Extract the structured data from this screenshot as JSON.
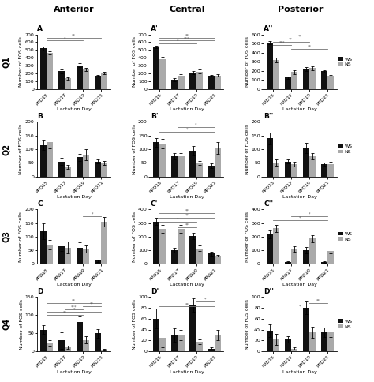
{
  "column_titles": [
    "Anterior",
    "Central",
    "Posterior"
  ],
  "row_labels": [
    "Q1",
    "Q2",
    "Q3",
    "Q4"
  ],
  "chart_data": [
    {
      "type": "bar",
      "title": "A",
      "x_label": "Lactation Day",
      "y_label": "Number of FOS cells",
      "categories": [
        "PPD15",
        "PPD17",
        "PPD19",
        "PPD21"
      ],
      "series": [
        {
          "name": "WS",
          "color": "#111111",
          "values": [
            520,
            230,
            305,
            170
          ],
          "errors": [
            25,
            25,
            25,
            15
          ]
        },
        {
          "name": "NS",
          "color": "#aaaaaa",
          "values": [
            460,
            135,
            255,
            205
          ],
          "errors": [
            20,
            12,
            20,
            18
          ]
        }
      ],
      "ylim": [
        0,
        700
      ],
      "yticks": [
        0,
        100,
        200,
        300,
        400,
        500,
        600,
        700
      ],
      "annotations": [
        {
          "from": "PPD15",
          "to": "PPD19",
          "y": 620,
          "text": "*"
        },
        {
          "from": "PPD15",
          "to": "PPD21",
          "y": 660,
          "text": "**"
        }
      ]
    },
    {
      "type": "bar",
      "title": "A'",
      "x_label": "Lactation Day",
      "y_label": "Number of FOS cells",
      "categories": [
        "PPD15",
        "PPD17",
        "PPD19",
        "PPD21"
      ],
      "series": [
        {
          "name": "WS",
          "color": "#111111",
          "values": [
            540,
            120,
            210,
            170
          ],
          "errors": [
            18,
            18,
            18,
            12
          ]
        },
        {
          "name": "NS",
          "color": "#aaaaaa",
          "values": [
            380,
            175,
            225,
            175
          ],
          "errors": [
            28,
            18,
            22,
            12
          ]
        }
      ],
      "ylim": [
        0,
        700
      ],
      "yticks": [
        0,
        100,
        200,
        300,
        400,
        500,
        600,
        700
      ],
      "annotations": [
        {
          "from": "PPD15",
          "to": "PPD19",
          "y": 580,
          "text": "*"
        },
        {
          "from": "PPD15",
          "to": "PPD21",
          "y": 620,
          "text": "***"
        },
        {
          "from": "PPD15",
          "to": "PPD21",
          "y": 660,
          "text": "**"
        }
      ]
    },
    {
      "type": "bar",
      "title": "A''",
      "x_label": "Lactation Day",
      "y_label": "Number of FOS cells",
      "categories": [
        "PPD15",
        "PPD17",
        "PPD19",
        "PPD21"
      ],
      "series": [
        {
          "name": "WS",
          "color": "#111111",
          "values": [
            510,
            125,
            220,
            195
          ],
          "errors": [
            20,
            15,
            18,
            15
          ]
        },
        {
          "name": "NS",
          "color": "#aaaaaa",
          "values": [
            320,
            185,
            230,
            145
          ],
          "errors": [
            25,
            18,
            22,
            12
          ]
        }
      ],
      "ylim": [
        0,
        600
      ],
      "yticks": [
        0,
        100,
        200,
        300,
        400,
        500,
        600
      ],
      "annotations": [
        {
          "from": "PPD15",
          "to": "PPD17",
          "y": 480,
          "text": "***"
        },
        {
          "from": "PPD15",
          "to": "PPD19",
          "y": 515,
          "text": "**"
        },
        {
          "from": "PPD15",
          "to": "PPD21",
          "y": 550,
          "text": "**"
        },
        {
          "from": "PPD17",
          "to": "PPD21",
          "y": 440,
          "text": "**"
        }
      ],
      "legend": "right"
    },
    {
      "type": "bar",
      "title": "B",
      "x_label": "Lactation Day",
      "y_label": "Number of FOS cells",
      "categories": [
        "PPD15",
        "PPD17",
        "PPD19",
        "PPD21"
      ],
      "series": [
        {
          "name": "WS",
          "color": "#111111",
          "values": [
            115,
            55,
            70,
            55
          ],
          "errors": [
            18,
            12,
            12,
            8
          ]
        },
        {
          "name": "NS",
          "color": "#aaaaaa",
          "values": [
            125,
            35,
            80,
            50
          ],
          "errors": [
            22,
            8,
            20,
            8
          ]
        }
      ],
      "ylim": [
        0,
        200
      ],
      "yticks": [
        0,
        50,
        100,
        150,
        200
      ],
      "annotations": []
    },
    {
      "type": "bar",
      "title": "B'",
      "x_label": "Lactation Day",
      "y_label": "Number of FOS cells",
      "categories": [
        "PPD15",
        "PPD17",
        "PPD19",
        "PPD21"
      ],
      "series": [
        {
          "name": "WS",
          "color": "#111111",
          "values": [
            125,
            75,
            95,
            40
          ],
          "errors": [
            15,
            12,
            18,
            8
          ]
        },
        {
          "name": "NS",
          "color": "#aaaaaa",
          "values": [
            120,
            75,
            50,
            105
          ],
          "errors": [
            18,
            10,
            8,
            22
          ]
        }
      ],
      "ylim": [
        0,
        200
      ],
      "yticks": [
        0,
        50,
        100,
        150,
        200
      ],
      "annotations": [
        {
          "from": "PPD15",
          "to": "PPD21",
          "y": 165,
          "text": "*"
        },
        {
          "from": "PPD17",
          "to": "PPD21",
          "y": 180,
          "text": "*"
        }
      ]
    },
    {
      "type": "bar",
      "title": "B''",
      "x_label": "Lactation Day",
      "y_label": "Number of FOS cells",
      "categories": [
        "PPD15",
        "PPD17",
        "PPD19",
        "PPD21"
      ],
      "series": [
        {
          "name": "WS",
          "color": "#111111",
          "values": [
            140,
            55,
            105,
            45
          ],
          "errors": [
            22,
            8,
            18,
            5
          ]
        },
        {
          "name": "NS",
          "color": "#aaaaaa",
          "values": [
            50,
            45,
            75,
            45
          ],
          "errors": [
            12,
            8,
            12,
            8
          ]
        }
      ],
      "ylim": [
        0,
        200
      ],
      "yticks": [
        0,
        50,
        100,
        150,
        200
      ],
      "annotations": [],
      "legend": "right"
    },
    {
      "type": "bar",
      "title": "C",
      "x_label": "Lactation Day",
      "y_label": "Number of FOS cells",
      "categories": [
        "PPD15",
        "PPD17",
        "PPD19",
        "PPD21"
      ],
      "series": [
        {
          "name": "WS",
          "color": "#111111",
          "values": [
            120,
            65,
            60,
            12
          ],
          "errors": [
            30,
            18,
            18,
            4
          ]
        },
        {
          "name": "NS",
          "color": "#aaaaaa",
          "values": [
            70,
            60,
            55,
            155
          ],
          "errors": [
            18,
            22,
            12,
            18
          ]
        }
      ],
      "ylim": [
        0,
        200
      ],
      "yticks": [
        0,
        50,
        100,
        150,
        200
      ],
      "annotations": [
        {
          "from": "PPD19",
          "to": "PPD21",
          "y": 175,
          "text": "*"
        }
      ]
    },
    {
      "type": "bar",
      "title": "C'",
      "x_label": "Lactation Day",
      "y_label": "Number of FOS cells",
      "categories": [
        "PPD15",
        "PPD17",
        "PPD19",
        "PPD21"
      ],
      "series": [
        {
          "name": "WS",
          "color": "#111111",
          "values": [
            310,
            100,
            205,
            75
          ],
          "errors": [
            25,
            18,
            22,
            12
          ]
        },
        {
          "name": "NS",
          "color": "#aaaaaa",
          "values": [
            255,
            255,
            115,
            60
          ],
          "errors": [
            28,
            28,
            18,
            8
          ]
        }
      ],
      "ylim": [
        0,
        400
      ],
      "yticks": [
        0,
        100,
        200,
        300,
        400
      ],
      "annotations": [
        {
          "from": "PPD15",
          "to": "PPD19",
          "y": 310,
          "text": "*"
        },
        {
          "from": "PPD15",
          "to": "PPD21",
          "y": 340,
          "text": "**"
        },
        {
          "from": "PPD17",
          "to": "PPD19",
          "y": 270,
          "text": "**"
        },
        {
          "from": "PPD15",
          "to": "PPD21",
          "y": 375,
          "text": "**"
        }
      ]
    },
    {
      "type": "bar",
      "title": "C''",
      "x_label": "Lactation Day",
      "y_label": "Number of FOS cells",
      "categories": [
        "PPD15",
        "PPD17",
        "PPD19",
        "PPD21"
      ],
      "series": [
        {
          "name": "WS",
          "color": "#111111",
          "values": [
            215,
            15,
            100,
            15
          ],
          "errors": [
            28,
            4,
            22,
            4
          ]
        },
        {
          "name": "NS",
          "color": "#aaaaaa",
          "values": [
            260,
            110,
            185,
            95
          ],
          "errors": [
            28,
            18,
            28,
            18
          ]
        }
      ],
      "ylim": [
        0,
        400
      ],
      "yticks": [
        0,
        100,
        200,
        300,
        400
      ],
      "annotations": [
        {
          "from": "PPD15",
          "to": "PPD21",
          "y": 320,
          "text": "*"
        },
        {
          "from": "PPD17",
          "to": "PPD21",
          "y": 350,
          "text": "*"
        }
      ],
      "legend": "right"
    },
    {
      "type": "bar",
      "title": "D",
      "x_label": "Lactation Day",
      "y_label": "Number of FOS cells",
      "categories": [
        "PPD15",
        "PPD17",
        "PPD19",
        "PPD21"
      ],
      "series": [
        {
          "name": "WS",
          "color": "#111111",
          "values": [
            60,
            30,
            80,
            50
          ],
          "errors": [
            12,
            22,
            15,
            12
          ]
        },
        {
          "name": "NS",
          "color": "#aaaaaa",
          "values": [
            22,
            12,
            32,
            5
          ],
          "errors": [
            8,
            4,
            10,
            2
          ]
        }
      ],
      "ylim": [
        0,
        150
      ],
      "yticks": [
        0,
        50,
        100,
        150
      ],
      "annotations": [
        {
          "from": "PPD15",
          "to": "PPD19",
          "y": 100,
          "text": "**"
        },
        {
          "from": "PPD15",
          "to": "PPD21",
          "y": 108,
          "text": "*"
        },
        {
          "from": "PPD17",
          "to": "PPD19",
          "y": 116,
          "text": "***"
        },
        {
          "from": "PPD19",
          "to": "PPD21",
          "y": 124,
          "text": "**"
        },
        {
          "from": "PPD15",
          "to": "PPD21",
          "y": 132,
          "text": "**"
        }
      ]
    },
    {
      "type": "bar",
      "title": "D'",
      "x_label": "Lactation Day",
      "y_label": "Number of FOS cells",
      "categories": [
        "PPD15",
        "PPD17",
        "PPD19",
        "PPD21"
      ],
      "series": [
        {
          "name": "WS",
          "color": "#111111",
          "values": [
            60,
            30,
            85,
            5
          ],
          "errors": [
            18,
            12,
            12,
            2
          ]
        },
        {
          "name": "NS",
          "color": "#aaaaaa",
          "values": [
            25,
            30,
            18,
            30
          ],
          "errors": [
            18,
            10,
            4,
            10
          ]
        }
      ],
      "ylim": [
        0,
        100
      ],
      "yticks": [
        0,
        20,
        40,
        60,
        80,
        100
      ],
      "annotations": [
        {
          "from": "PPD15",
          "to": "PPD21",
          "y": 82,
          "text": "**"
        },
        {
          "from": "PPD19",
          "to": "PPD21",
          "y": 92,
          "text": "*"
        }
      ]
    },
    {
      "type": "bar",
      "title": "D''",
      "x_label": "Lactation Day",
      "y_label": "Number of FOS cells",
      "categories": [
        "PPD15",
        "PPD17",
        "PPD19",
        "PPD21"
      ],
      "series": [
        {
          "name": "WS",
          "color": "#111111",
          "values": [
            38,
            22,
            80,
            35
          ],
          "errors": [
            12,
            6,
            12,
            8
          ]
        },
        {
          "name": "NS",
          "color": "#aaaaaa",
          "values": [
            22,
            5,
            35,
            35
          ],
          "errors": [
            10,
            2,
            10,
            8
          ]
        }
      ],
      "ylim": [
        0,
        100
      ],
      "yticks": [
        0,
        20,
        40,
        60,
        80,
        100
      ],
      "annotations": [
        {
          "from": "PPD15",
          "to": "PPD21",
          "y": 78,
          "text": "*"
        },
        {
          "from": "PPD19",
          "to": "PPD21",
          "y": 88,
          "text": "**"
        }
      ],
      "legend": "right"
    }
  ]
}
